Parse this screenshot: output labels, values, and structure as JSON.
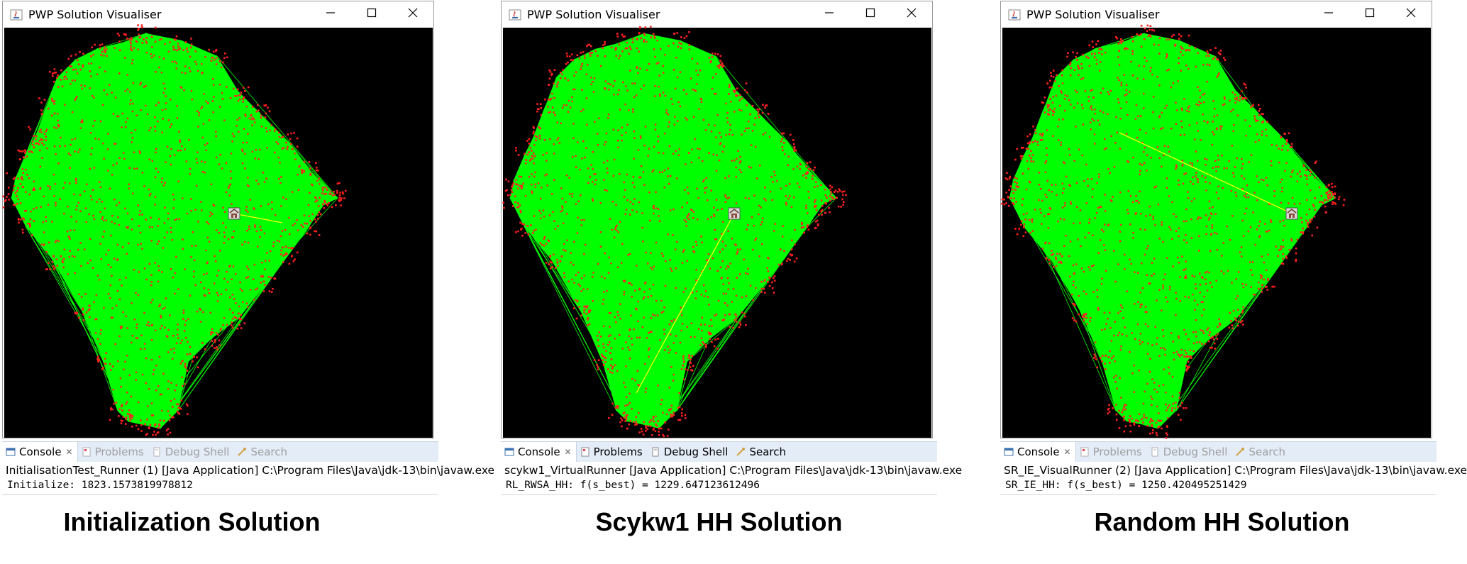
{
  "panels": [
    {
      "window_title": "PWP Solution Visualiser",
      "tabs": {
        "console": "Console",
        "problems": "Problems",
        "debug_shell": "Debug Shell",
        "search": "Search"
      },
      "launch_line": "InitialisationTest_Runner (1) [Java Application] C:\\Program Files\\Java\\jdk-13\\bin\\javaw.exe",
      "output_line": "Initialize: 1823.1573819978812",
      "caption": "Initialization Solution"
    },
    {
      "window_title": "PWP Solution Visualiser",
      "tabs": {
        "console": "Console",
        "problems": "Problems",
        "debug_shell": "Debug Shell",
        "search": "Search"
      },
      "launch_line": "scykw1_VirtualRunner [Java Application] C:\\Program Files\\Java\\jdk-13\\bin\\javaw.exe",
      "output_line": "RL_RWSA_HH: f(s_best) = 1229.647123612496",
      "caption": "Scykw1 HH Solution"
    },
    {
      "window_title": "PWP Solution Visualiser",
      "tabs": {
        "console": "Console",
        "problems": "Problems",
        "debug_shell": "Debug Shell",
        "search": "Search"
      },
      "launch_line": "SR_IE_VisualRunner (2) [Java Application] C:\\Program Files\\Java\\jdk-13\\bin\\javaw.exe",
      "output_line": "SR_IE_HH: f(s_best) = 1250.420495251429",
      "caption": "Random HH Solution"
    }
  ],
  "colors": {
    "canvas_bg": "#000000",
    "route": "#00ff00",
    "nodes": "#ff2020",
    "highlight": "#ffff00",
    "tab_bar": "#e3ecf7"
  },
  "icons": [
    "java-app-icon",
    "minimize-icon",
    "maximize-icon",
    "close-icon",
    "console-icon",
    "problems-icon",
    "debug-shell-icon",
    "search-icon",
    "depot-icon"
  ]
}
